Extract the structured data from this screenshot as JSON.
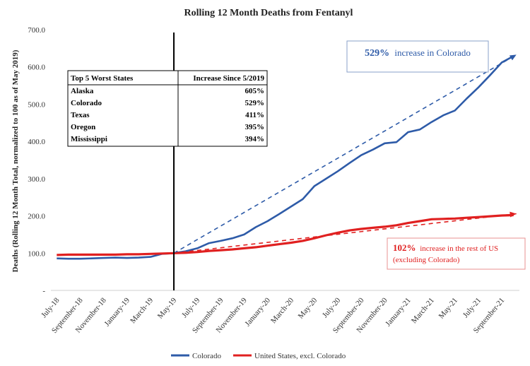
{
  "chart_data": {
    "type": "line",
    "title": "Rolling 12 Month Deaths from Fentanyl",
    "ylabel": "Deaths (Rolling 12 Month Total, normalized to 100 as of May 2019)",
    "xlabel": "",
    "ylim": [
      0,
      700
    ],
    "yticks": [
      "-",
      "100.0",
      "200.0",
      "300.0",
      "400.0",
      "500.0",
      "600.0",
      "700.0"
    ],
    "ytick_values": [
      0,
      100,
      200,
      300,
      400,
      500,
      600,
      700
    ],
    "x_tick_labels": [
      "July-18",
      "September-18",
      "November-18",
      "January-19",
      "March-19",
      "May-19",
      "July-19",
      "September-19",
      "November-19",
      "January-20",
      "March-20",
      "May-20",
      "July-20",
      "September-20",
      "November-20",
      "January-21",
      "March-21",
      "May-21",
      "July-21",
      "September-21"
    ],
    "x_tick_index": [
      0,
      2,
      4,
      6,
      8,
      10,
      12,
      14,
      16,
      18,
      20,
      22,
      24,
      26,
      28,
      30,
      32,
      34,
      36,
      38
    ],
    "x_count": 40,
    "reference_line_index": 10,
    "series": [
      {
        "name": "Colorado",
        "color": "#2e5ba8",
        "values": [
          86,
          85,
          85,
          86,
          87,
          88,
          87,
          88,
          90,
          98,
          100,
          105,
          113,
          127,
          133,
          140,
          150,
          170,
          186,
          205,
          225,
          245,
          280,
          300,
          320,
          342,
          363,
          378,
          395,
          398,
          425,
          432,
          452,
          470,
          483,
          515,
          545,
          578,
          612,
          629
        ]
      },
      {
        "name": "United States, excl. Colorado",
        "color": "#e02020",
        "values": [
          95,
          96,
          96,
          96,
          96,
          96,
          97,
          97,
          98,
          99,
          100,
          101,
          103,
          106,
          108,
          110,
          113,
          116,
          120,
          124,
          128,
          133,
          140,
          148,
          155,
          161,
          165,
          168,
          171,
          175,
          181,
          186,
          191,
          192,
          193,
          195,
          197,
          199,
          201,
          202
        ]
      }
    ],
    "trend_lines": [
      {
        "name": "Colorado trend",
        "color": "#2e5ba8",
        "from": [
          10,
          100
        ],
        "to": [
          39,
          629
        ]
      },
      {
        "name": "US trend",
        "color": "#e02020",
        "from": [
          10,
          100
        ],
        "to": [
          39,
          202
        ]
      }
    ],
    "annotations": [
      {
        "pct": "529%",
        "text": "increase in Colorado",
        "color": "#2e5ba8"
      },
      {
        "pct": "102%",
        "text": "increase in the rest of US",
        "line2": "(excluding Colorado)",
        "color": "#e02020"
      }
    ],
    "table": {
      "headers": [
        "Top 5 Worst States",
        "Increase Since 5/2019"
      ],
      "rows": [
        {
          "state": "Alaska",
          "value": "605%",
          "color": "#000000"
        },
        {
          "state": "Colorado",
          "value": "529%",
          "color": "#e02020"
        },
        {
          "state": "Texas",
          "value": "411%",
          "color": "#000000"
        },
        {
          "state": "Oregon",
          "value": "395%",
          "color": "#000000"
        },
        {
          "state": "Mississippi",
          "value": "394%",
          "color": "#000000"
        }
      ]
    },
    "legend": [
      {
        "label": "Colorado",
        "color": "#2e5ba8"
      },
      {
        "label": "United States, excl. Colorado",
        "color": "#e02020"
      }
    ],
    "legend_position": "bottom"
  }
}
